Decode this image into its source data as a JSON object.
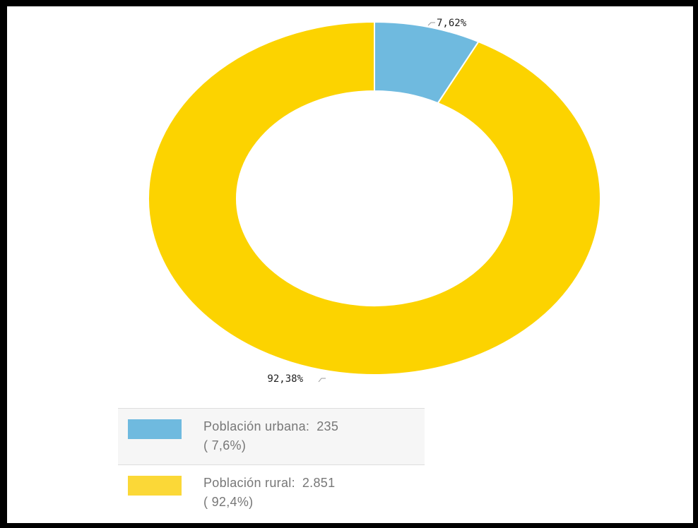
{
  "chart_data": {
    "type": "pie",
    "donut": true,
    "slices": [
      {
        "label": "Población urbana",
        "value": 235,
        "percent_label": "7,62%",
        "legend_value": "235",
        "legend_percent": "( 7,6%)",
        "color": "#6fbadf"
      },
      {
        "label": "Población rural",
        "value": 2851,
        "percent_label": "92,38%",
        "legend_value": "2.851",
        "legend_percent": "( 92,4%)",
        "color": "#fcd300"
      }
    ],
    "legend_position": "bottom-left"
  },
  "legend": {
    "items": [
      {
        "name": "Población urbana:",
        "value": "235",
        "percent": "( 7,6%)",
        "color": "#6fbadf"
      },
      {
        "name": "Población rural:",
        "value": "2.851",
        "percent": "( 92,4%)",
        "color": "#fbd837"
      }
    ]
  }
}
